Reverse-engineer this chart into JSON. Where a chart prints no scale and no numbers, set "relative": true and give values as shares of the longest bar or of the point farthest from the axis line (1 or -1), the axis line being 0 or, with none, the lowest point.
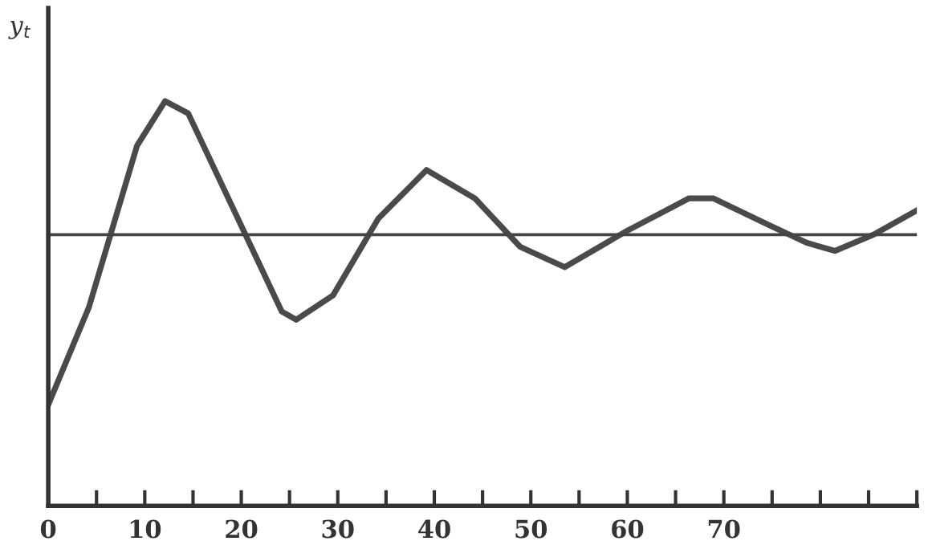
{
  "chart_data": {
    "type": "line",
    "ylabel": "y$_{t}$",
    "relative": true,
    "xlim": [
      0,
      90
    ],
    "xticks": [
      0,
      {
        "value": 5,
        "label": null
      },
      10,
      {
        "value": 15,
        "label": null
      },
      20,
      {
        "value": 25,
        "label": null
      },
      30,
      {
        "value": 35,
        "label": null
      },
      40,
      {
        "value": 45,
        "label": null
      },
      50,
      {
        "value": 55,
        "label": null
      },
      60,
      {
        "value": 65,
        "label": null
      },
      70,
      {
        "value": 75,
        "label": null
      },
      {
        "value": 80,
        "label": null
      },
      {
        "value": 85,
        "label": null
      },
      {
        "value": 90,
        "label": null
      }
    ],
    "ref_lines": [
      {
        "axis": "y",
        "value": 0.67,
        "color": "#444444"
      }
    ],
    "series": [
      {
        "color": "#4a4a4a",
        "x": [
          0,
          4.2,
          9.2,
          12.1,
          14.5,
          24.2,
          25.7,
          29.5,
          34.2,
          39.2,
          44.2,
          48.9,
          53.5,
          60,
          66.4,
          68.9,
          75,
          78.6,
          81.5,
          85.5,
          90
        ],
        "values": [
          0.25,
          0.49,
          0.89,
          1.0,
          0.97,
          0.48,
          0.46,
          0.52,
          0.71,
          0.83,
          0.76,
          0.64,
          0.59,
          0.68,
          0.76,
          0.76,
          0.69,
          0.65,
          0.63,
          0.67,
          0.73
        ]
      }
    ],
    "grid": false,
    "legend": false,
    "marker": "none",
    "line_style": "solid"
  }
}
